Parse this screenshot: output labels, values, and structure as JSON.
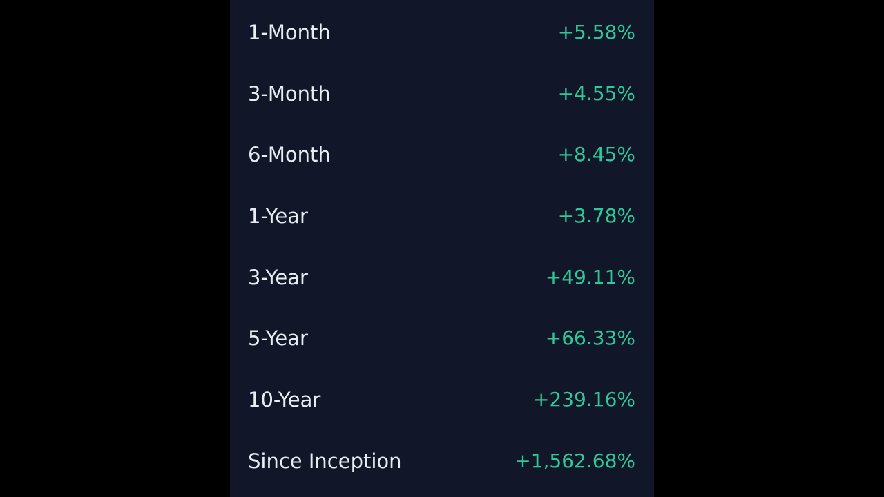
{
  "colors": {
    "background": "#000000",
    "panel": "#111729",
    "label": "#e9edf3",
    "positive": "#2fc89a"
  },
  "returns": [
    {
      "period": "1-Month",
      "value": "+5.58%"
    },
    {
      "period": "3-Month",
      "value": "+4.55%"
    },
    {
      "period": "6-Month",
      "value": "+8.45%"
    },
    {
      "period": "1-Year",
      "value": "+3.78%"
    },
    {
      "period": "3-Year",
      "value": "+49.11%"
    },
    {
      "period": "5-Year",
      "value": "+66.33%"
    },
    {
      "period": "10-Year",
      "value": "+239.16%"
    },
    {
      "period": "Since Inception",
      "value": "+1,562.68%"
    }
  ]
}
